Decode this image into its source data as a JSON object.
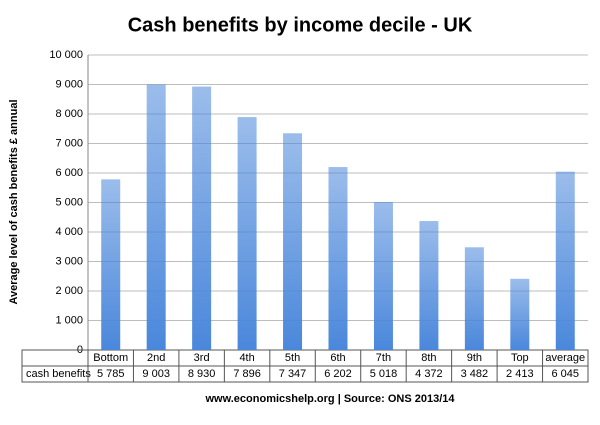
{
  "chart_data": {
    "type": "bar",
    "title": "Cash benefits by income decile - UK",
    "y_label": "Average level of cash benefits £ annual",
    "source": "www.economicshelp.org | Source: ONS 2013/14",
    "categories": [
      "Bottom",
      "2nd",
      "3rd",
      "4th",
      "5th",
      "6th",
      "7th",
      "8th",
      "9th",
      "Top",
      "average"
    ],
    "series": [
      {
        "name": "cash benefits",
        "color": "#4a87db",
        "values": [
          5785,
          9003,
          8930,
          7896,
          7347,
          6202,
          5018,
          4372,
          3482,
          2413,
          6045
        ],
        "value_labels": [
          "5 785",
          "9 003",
          "8 930",
          "7 896",
          "7 347",
          "6 202",
          "5 018",
          "4 372",
          "3 482",
          "2 413",
          "6 045"
        ]
      }
    ],
    "ylim": [
      0,
      10000
    ],
    "yticks": [
      0,
      {
        "value": 1000,
        "label": "1 000"
      },
      {
        "value": 2000,
        "label": "2 000"
      },
      {
        "value": 3000,
        "label": "3 000"
      },
      {
        "value": 4000,
        "label": "4 000"
      },
      {
        "value": 5000,
        "label": "5 000"
      },
      {
        "value": 6000,
        "label": "6 000"
      },
      {
        "value": 7000,
        "label": "7 000"
      },
      {
        "value": 8000,
        "label": "8 000"
      },
      {
        "value": 9000,
        "label": "9 000"
      },
      {
        "value": 10000,
        "label": "10 000"
      }
    ],
    "grid": true
  }
}
